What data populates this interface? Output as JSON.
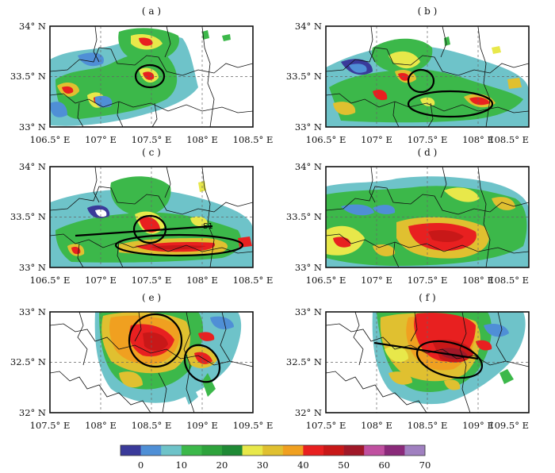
{
  "panels": [
    {
      "label": "( a )",
      "lat_labels": [
        "34° N",
        "33.5° N",
        "33° N"
      ],
      "lon_labels": [
        "106.5° E",
        "107° E",
        "107.5° E",
        "108° E",
        "108.5° E"
      ],
      "annotations": []
    },
    {
      "label": "( b )",
      "lat_labels": [
        "34° N",
        "33.5° N",
        "33° N"
      ],
      "lon_labels": [
        "106.5° E",
        "107° E",
        "107.5° E",
        "108° E",
        "108.5° E"
      ],
      "annotations": []
    },
    {
      "label": "( c )",
      "lat_labels": [
        "34° N",
        "33.5° N",
        "33° N"
      ],
      "lon_labels": [
        "106.5° E",
        "107° E",
        "107.5° E",
        "108° E",
        "108.5° E"
      ],
      "annotations": [
        "S1"
      ]
    },
    {
      "label": "( d )",
      "lat_labels": [
        "34° N",
        "33.5° N",
        "33° N"
      ],
      "lon_labels": [
        "106.5° E",
        "107° E",
        "107.5° E",
        "108° E",
        "108.5° E"
      ],
      "annotations": []
    },
    {
      "label": "( e )",
      "lat_labels": [
        "33° N",
        "32.5° N",
        "32° N"
      ],
      "lon_labels": [
        "107.5° E",
        "108° E",
        "108.5° E",
        "109° E",
        "109.5° E"
      ],
      "annotations": []
    },
    {
      "label": "( f )",
      "lat_labels": [
        "33° N",
        "32.5° N",
        "32° N"
      ],
      "lon_labels": [
        "107.5° E",
        "108° E",
        "108.5° E",
        "109° E",
        "109.5° E"
      ],
      "annotations": []
    }
  ],
  "colorbar": {
    "tick_labels": [
      "0",
      "10",
      "20",
      "30",
      "40",
      "50",
      "60",
      "70"
    ],
    "colors": [
      "#3a3a9a",
      "#4f8fd6",
      "#6ec3c9",
      "#3cb84a",
      "#2ea33c",
      "#1f8a35",
      "#e8e84a",
      "#e0c030",
      "#f0a020",
      "#e82020",
      "#c81818",
      "#a01828",
      "#c050a0",
      "#8a2a7a",
      "#a080c0"
    ]
  },
  "legend_colors": {
    "weak": "#6ec3c9",
    "moderate": "#3cb84a",
    "strong": "#e8e84a",
    "severe": "#e82020"
  }
}
